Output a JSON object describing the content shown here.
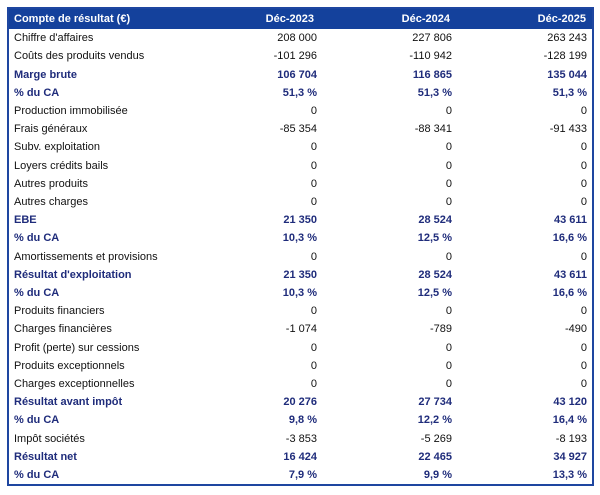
{
  "colors": {
    "header_bg": "#14419C",
    "header_text": "#FFFFFF",
    "bold_text": "#1F2C7B",
    "body_text": "#111111",
    "border": "#1E46A0"
  },
  "table": {
    "header": {
      "label": "Compte de résultat (€)",
      "columns": [
        "Déc-2023",
        "Déc-2024",
        "Déc-2025"
      ]
    },
    "rows": [
      {
        "label": "Chiffre d'affaires",
        "values": [
          "208 000",
          "227 806",
          "263 243"
        ],
        "bold": false
      },
      {
        "label": "Coûts des produits vendus",
        "values": [
          "-101 296",
          "-110 942",
          "-128 199"
        ],
        "bold": false
      },
      {
        "label": "Marge brute",
        "values": [
          "106 704",
          "116 865",
          "135 044"
        ],
        "bold": true
      },
      {
        "label": "% du CA",
        "values": [
          "51,3 %",
          "51,3 %",
          "51,3 %"
        ],
        "bold": true
      },
      {
        "label": "Production immobilisée",
        "values": [
          "0",
          "0",
          "0"
        ],
        "bold": false
      },
      {
        "label": "Frais généraux",
        "values": [
          "-85 354",
          "-88 341",
          "-91 433"
        ],
        "bold": false
      },
      {
        "label": "Subv. exploitation",
        "values": [
          "0",
          "0",
          "0"
        ],
        "bold": false
      },
      {
        "label": "Loyers crédits bails",
        "values": [
          "0",
          "0",
          "0"
        ],
        "bold": false
      },
      {
        "label": "Autres produits",
        "values": [
          "0",
          "0",
          "0"
        ],
        "bold": false
      },
      {
        "label": "Autres charges",
        "values": [
          "0",
          "0",
          "0"
        ],
        "bold": false
      },
      {
        "label": "EBE",
        "values": [
          "21 350",
          "28 524",
          "43 611"
        ],
        "bold": true
      },
      {
        "label": "% du CA",
        "values": [
          "10,3 %",
          "12,5 %",
          "16,6 %"
        ],
        "bold": true
      },
      {
        "label": "Amortissements et provisions",
        "values": [
          "0",
          "0",
          "0"
        ],
        "bold": false
      },
      {
        "label": "Résultat d'exploitation",
        "values": [
          "21 350",
          "28 524",
          "43 611"
        ],
        "bold": true
      },
      {
        "label": "% du CA",
        "values": [
          "10,3 %",
          "12,5 %",
          "16,6 %"
        ],
        "bold": true
      },
      {
        "label": "Produits financiers",
        "values": [
          "0",
          "0",
          "0"
        ],
        "bold": false
      },
      {
        "label": "Charges financières",
        "values": [
          "-1 074",
          "-789",
          "-490"
        ],
        "bold": false
      },
      {
        "label": "Profit (perte) sur cessions",
        "values": [
          "0",
          "0",
          "0"
        ],
        "bold": false
      },
      {
        "label": "Produits exceptionnels",
        "values": [
          "0",
          "0",
          "0"
        ],
        "bold": false
      },
      {
        "label": "Charges exceptionnelles",
        "values": [
          "0",
          "0",
          "0"
        ],
        "bold": false
      },
      {
        "label": "Résultat avant impôt",
        "values": [
          "20 276",
          "27 734",
          "43 120"
        ],
        "bold": true
      },
      {
        "label": "% du CA",
        "values": [
          "9,8 %",
          "12,2 %",
          "16,4 %"
        ],
        "bold": true
      },
      {
        "label": "Impôt sociétés",
        "values": [
          "-3 853",
          "-5 269",
          "-8 193"
        ],
        "bold": false
      },
      {
        "label": "Résultat net",
        "values": [
          "16 424",
          "22 465",
          "34 927"
        ],
        "bold": true
      },
      {
        "label": "% du CA",
        "values": [
          "7,9 %",
          "9,9 %",
          "13,3 %"
        ],
        "bold": true
      }
    ]
  },
  "chart_data": {
    "type": "table",
    "title": "Compte de résultat (€)",
    "columns": [
      "Déc-2023",
      "Déc-2024",
      "Déc-2025"
    ],
    "rows": [
      {
        "name": "Chiffre d'affaires",
        "values": [
          208000,
          227806,
          263243
        ]
      },
      {
        "name": "Coûts des produits vendus",
        "values": [
          -101296,
          -110942,
          -128199
        ]
      },
      {
        "name": "Marge brute",
        "values": [
          106704,
          116865,
          135044
        ],
        "emphasis": true
      },
      {
        "name": "% du CA (marge brute)",
        "values_pct": [
          51.3,
          51.3,
          51.3
        ],
        "emphasis": true
      },
      {
        "name": "Production immobilisée",
        "values": [
          0,
          0,
          0
        ]
      },
      {
        "name": "Frais généraux",
        "values": [
          -85354,
          -88341,
          -91433
        ]
      },
      {
        "name": "Subv. exploitation",
        "values": [
          0,
          0,
          0
        ]
      },
      {
        "name": "Loyers crédits bails",
        "values": [
          0,
          0,
          0
        ]
      },
      {
        "name": "Autres produits",
        "values": [
          0,
          0,
          0
        ]
      },
      {
        "name": "Autres charges",
        "values": [
          0,
          0,
          0
        ]
      },
      {
        "name": "EBE",
        "values": [
          21350,
          28524,
          43611
        ],
        "emphasis": true
      },
      {
        "name": "% du CA (EBE)",
        "values_pct": [
          10.3,
          12.5,
          16.6
        ],
        "emphasis": true
      },
      {
        "name": "Amortissements et provisions",
        "values": [
          0,
          0,
          0
        ]
      },
      {
        "name": "Résultat d'exploitation",
        "values": [
          21350,
          28524,
          43611
        ],
        "emphasis": true
      },
      {
        "name": "% du CA (résultat d'exploitation)",
        "values_pct": [
          10.3,
          12.5,
          16.6
        ],
        "emphasis": true
      },
      {
        "name": "Produits financiers",
        "values": [
          0,
          0,
          0
        ]
      },
      {
        "name": "Charges financières",
        "values": [
          -1074,
          -789,
          -490
        ]
      },
      {
        "name": "Profit (perte) sur cessions",
        "values": [
          0,
          0,
          0
        ]
      },
      {
        "name": "Produits exceptionnels",
        "values": [
          0,
          0,
          0
        ]
      },
      {
        "name": "Charges exceptionnelles",
        "values": [
          0,
          0,
          0
        ]
      },
      {
        "name": "Résultat avant impôt",
        "values": [
          20276,
          27734,
          43120
        ],
        "emphasis": true
      },
      {
        "name": "% du CA (résultat avant impôt)",
        "values_pct": [
          9.8,
          12.2,
          16.4
        ],
        "emphasis": true
      },
      {
        "name": "Impôt sociétés",
        "values": [
          -3853,
          -5269,
          -8193
        ]
      },
      {
        "name": "Résultat net",
        "values": [
          16424,
          22465,
          34927
        ],
        "emphasis": true
      },
      {
        "name": "% du CA (résultat net)",
        "values_pct": [
          7.9,
          9.9,
          13.3
        ],
        "emphasis": true
      }
    ]
  }
}
